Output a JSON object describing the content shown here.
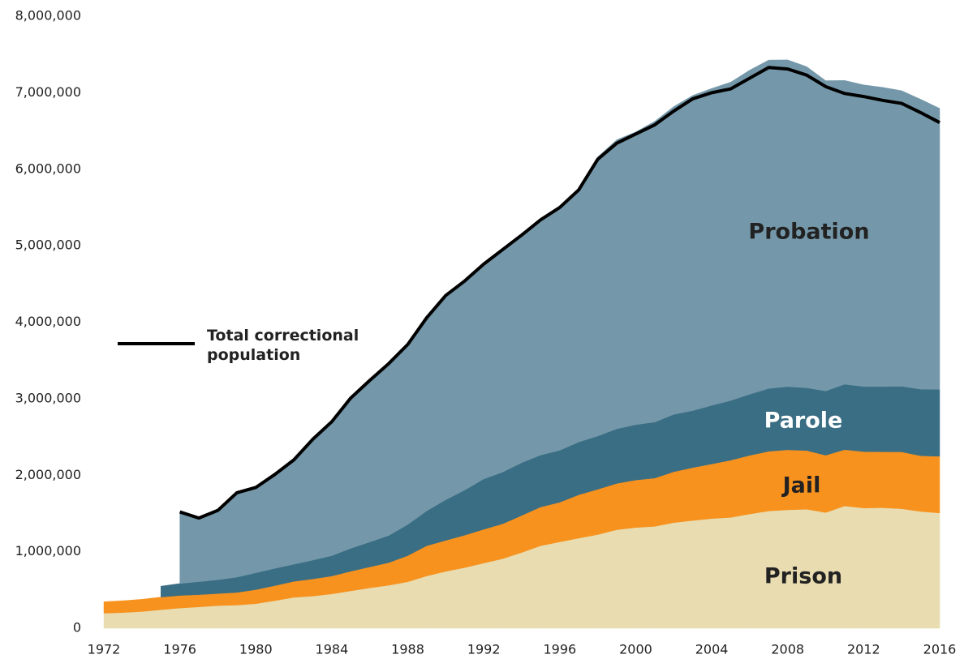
{
  "chart_data": {
    "type": "stacked_area",
    "x": [
      1972,
      1973,
      1974,
      1975,
      1976,
      1977,
      1978,
      1979,
      1980,
      1981,
      1982,
      1983,
      1984,
      1985,
      1986,
      1987,
      1988,
      1989,
      1990,
      1991,
      1992,
      1993,
      1994,
      1995,
      1996,
      1997,
      1998,
      1999,
      2000,
      2001,
      2002,
      2003,
      2004,
      2005,
      2006,
      2007,
      2008,
      2009,
      2010,
      2011,
      2012,
      2013,
      2014,
      2015,
      2016
    ],
    "series": [
      {
        "name": "Prison",
        "color": "#e8dcb0",
        "values": [
          196000,
          204000,
          218000,
          241000,
          263000,
          278000,
          295000,
          302000,
          320000,
          360000,
          403000,
          420000,
          448000,
          488000,
          527000,
          561000,
          607000,
          683000,
          743000,
          792000,
          851000,
          909000,
          990000,
          1078000,
          1128000,
          1177000,
          1224000,
          1287000,
          1316000,
          1331000,
          1380000,
          1408000,
          1433000,
          1448000,
          1493000,
          1532000,
          1547000,
          1555000,
          1512000,
          1598000,
          1571000,
          1575000,
          1561000,
          1526000,
          1506000
        ]
      },
      {
        "name": "Jail",
        "color": "#f7921e",
        "values": [
          150000,
          155000,
          160000,
          165000,
          165000,
          160000,
          158000,
          165000,
          184000,
          196000,
          209000,
          224000,
          234000,
          256000,
          274000,
          296000,
          342000,
          395000,
          405000,
          424000,
          442000,
          456000,
          484000,
          507000,
          518000,
          567000,
          592000,
          605000,
          621000,
          631000,
          665000,
          691000,
          714000,
          748000,
          766000,
          780000,
          785000,
          767000,
          749000,
          736000,
          737000,
          731000,
          744000,
          728000,
          741000
        ]
      },
      {
        "name": "Parole",
        "color": "#3a6e84",
        "values": [
          null,
          null,
          null,
          143000,
          156000,
          170000,
          180000,
          200000,
          220000,
          226000,
          224000,
          246000,
          266000,
          300000,
          326000,
          355000,
          407000,
          456000,
          531000,
          590000,
          658000,
          676000,
          690000,
          679000,
          679000,
          690000,
          696000,
          714000,
          724000,
          732000,
          750000,
          745000,
          766000,
          780000,
          799000,
          822000,
          826000,
          820000,
          840000,
          855000,
          851000,
          853000,
          857000,
          870000,
          875000
        ]
      },
      {
        "name": "Probation",
        "color": "#7498a9",
        "values": [
          null,
          null,
          null,
          null,
          923000,
          832000,
          907000,
          1103000,
          1116000,
          1228000,
          1364000,
          1580000,
          1752000,
          1966000,
          2113000,
          2248000,
          2354000,
          2526000,
          2671000,
          2734000,
          2809000,
          2899000,
          2976000,
          3076000,
          3165000,
          3296000,
          3650000,
          3779000,
          3826000,
          3932000,
          4024000,
          4120000,
          4143000,
          4162000,
          4237000,
          4293000,
          4271000,
          4199000,
          4056000,
          3971000,
          3943000,
          3911000,
          3864000,
          3790000,
          3673000
        ]
      }
    ],
    "total": {
      "name": "Total correctional population",
      "color": "#000000",
      "values": [
        null,
        null,
        null,
        null,
        1520000,
        1440000,
        1540000,
        1770000,
        1840000,
        2010000,
        2200000,
        2470000,
        2700000,
        3010000,
        3240000,
        3460000,
        3710000,
        4060000,
        4350000,
        4540000,
        4760000,
        4950000,
        5140000,
        5340000,
        5500000,
        5730000,
        6130000,
        6340000,
        6460000,
        6580000,
        6760000,
        6920000,
        7000000,
        7050000,
        7190000,
        7330000,
        7310000,
        7230000,
        7080000,
        6990000,
        6950000,
        6900000,
        6860000,
        6740000,
        6610000
      ]
    },
    "xlim": [
      1972,
      2016
    ],
    "xticks": [
      1972,
      1976,
      1980,
      1984,
      1988,
      1992,
      1996,
      2000,
      2004,
      2008,
      2012,
      2016
    ],
    "ylim": [
      0,
      8000000
    ],
    "yticks": [
      0,
      {
        "value": 1000000,
        "label": "1,000,000"
      },
      {
        "value": 2000000,
        "label": "2,000,000"
      },
      {
        "value": 3000000,
        "label": "3,000,000"
      },
      {
        "value": 4000000,
        "label": "4,000,000"
      },
      {
        "value": 5000000,
        "label": "5,000,000"
      },
      {
        "value": 6000000,
        "label": "6,000,000"
      },
      {
        "value": 7000000,
        "label": "7,000,000"
      },
      {
        "value": 8000000,
        "label": "8,000,000"
      }
    ],
    "grid": false
  }
}
